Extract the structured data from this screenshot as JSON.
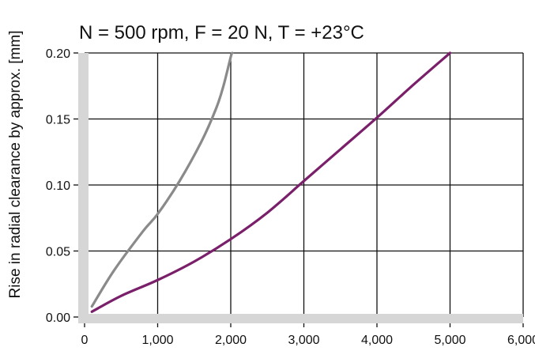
{
  "chart_data": {
    "type": "line",
    "title": "N = 500 rpm, F = 20 N, T = +23°C",
    "xlabel": "",
    "ylabel": "Rise in radial clearance by approx. [mm]",
    "xlim": [
      0,
      6000
    ],
    "ylim": [
      0,
      0.2
    ],
    "x_ticks": [
      0,
      1000,
      2000,
      3000,
      4000,
      5000,
      6000
    ],
    "x_tick_labels": [
      "0",
      "1,000",
      "2,000",
      "3,000",
      "4,000",
      "5,000",
      "6,000"
    ],
    "y_ticks": [
      0,
      0.05,
      0.1,
      0.15,
      0.2
    ],
    "y_tick_labels": [
      "0.00",
      "0.05",
      "0.10",
      "0.15",
      "0.20"
    ],
    "grid": true,
    "series": [
      {
        "color": "#8a8a8a",
        "x": [
          100,
          400,
          800,
          1000,
          1300,
          1600,
          1800,
          1900,
          2000,
          2020
        ],
        "y": [
          0.008,
          0.035,
          0.065,
          0.078,
          0.103,
          0.133,
          0.158,
          0.175,
          0.197,
          0.2
        ]
      },
      {
        "color": "#7a1f6a",
        "x": [
          100,
          500,
          1000,
          1500,
          2000,
          2500,
          3000,
          3500,
          4000,
          4500,
          5000
        ],
        "y": [
          0.004,
          0.016,
          0.028,
          0.042,
          0.059,
          0.079,
          0.103,
          0.127,
          0.151,
          0.176,
          0.2
        ]
      }
    ]
  }
}
